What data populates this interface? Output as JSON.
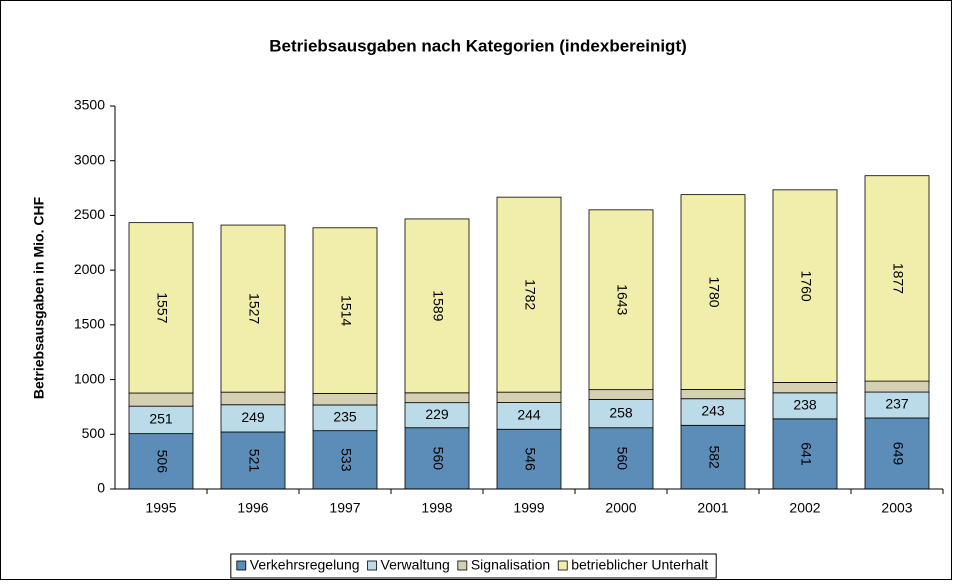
{
  "chart_data": {
    "type": "stacked_bar",
    "title": "Betriebsausgaben nach Kategorien (indexbereinigt)",
    "y_label": "Betriebsausgaben in Mio. CHF",
    "categories": [
      "1995",
      "1996",
      "1997",
      "1998",
      "1999",
      "2000",
      "2001",
      "2002",
      "2003"
    ],
    "series": [
      {
        "name": "Verkehrsregelung",
        "color": "#5b8db8",
        "show_labels": true,
        "values": [
          506,
          521,
          533,
          560,
          546,
          560,
          582,
          641,
          649
        ]
      },
      {
        "name": "Verwaltung",
        "color": "#bcdbe8",
        "show_labels": true,
        "values": [
          251,
          249,
          235,
          229,
          244,
          258,
          243,
          238,
          237
        ]
      },
      {
        "name": "Signalisation",
        "color": "#d6d0b2",
        "show_labels": false,
        "values": [
          120,
          115,
          105,
          90,
          95,
          90,
          85,
          95,
          100
        ]
      },
      {
        "name": "betrieblicher Unterhalt",
        "color": "#f0eeaa",
        "show_labels": true,
        "values": [
          1557,
          1527,
          1514,
          1589,
          1782,
          1643,
          1780,
          1760,
          1877
        ]
      }
    ],
    "ylim": [
      0,
      3500
    ],
    "yticks": [
      0,
      500,
      1000,
      1500,
      2000,
      2500,
      3000,
      3500
    ],
    "grid": false,
    "legend": "bottom"
  }
}
